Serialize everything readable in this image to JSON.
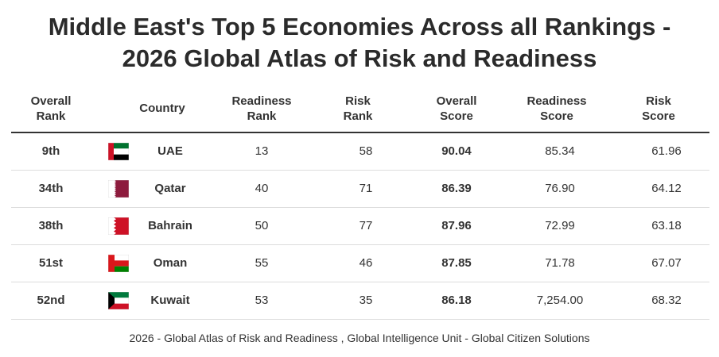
{
  "title": {
    "line1": "Middle East's Top 5 Economies Across all Rankings -",
    "line2": "2026 Global Atlas of Risk and Readiness"
  },
  "headers": {
    "overall_rank": [
      "Overall",
      "Rank"
    ],
    "country": "Country",
    "readiness_rank": [
      "Readiness",
      "Rank"
    ],
    "risk_rank": [
      "Risk",
      "Rank"
    ],
    "overall_score": [
      "Overall",
      "Score"
    ],
    "readiness_score": [
      "Readiness",
      "Score"
    ],
    "risk_score": [
      "Risk",
      "Score"
    ]
  },
  "rows": [
    {
      "overall_rank": "9th",
      "flag": "uae-flag-icon",
      "country": "UAE",
      "readiness_rank": "13",
      "risk_rank": "58",
      "overall_score": "90.04",
      "readiness_score": "85.34",
      "risk_score": "61.96"
    },
    {
      "overall_rank": "34th",
      "flag": "qatar-flag-icon",
      "country": "Qatar",
      "readiness_rank": "40",
      "risk_rank": "71",
      "overall_score": "86.39",
      "readiness_score": "76.90",
      "risk_score": "64.12"
    },
    {
      "overall_rank": "38th",
      "flag": "bahrain-flag-icon",
      "country": "Bahrain",
      "readiness_rank": "50",
      "risk_rank": "77",
      "overall_score": "87.96",
      "readiness_score": "72.99",
      "risk_score": "63.18"
    },
    {
      "overall_rank": "51st",
      "flag": "oman-flag-icon",
      "country": "Oman",
      "readiness_rank": "55",
      "risk_rank": "46",
      "overall_score": "87.85",
      "readiness_score": "71.78",
      "risk_score": "67.07"
    },
    {
      "overall_rank": "52nd",
      "flag": "kuwait-flag-icon",
      "country": "Kuwait",
      "readiness_rank": "53",
      "risk_rank": "35",
      "overall_score": "86.18",
      "readiness_score": "7,254.00",
      "risk_score": "68.32"
    }
  ],
  "footer": "2026 - Global Atlas of Risk and Readiness , Global Intelligence Unit - Global Citizen Solutions"
}
